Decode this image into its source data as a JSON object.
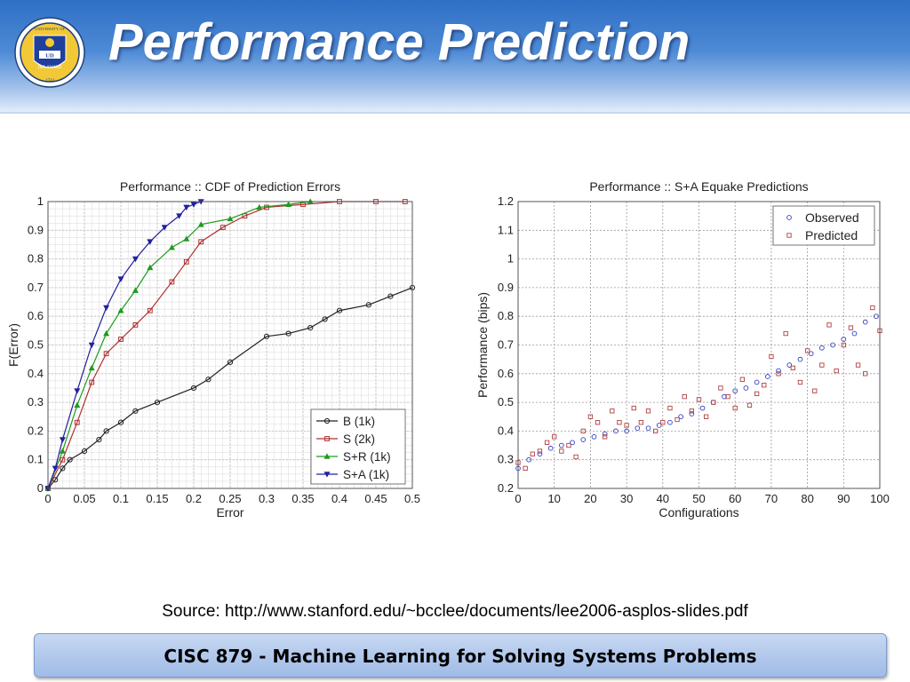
{
  "slide": {
    "title": "Performance Prediction",
    "source": "Source: http://www.stanford.edu/~bcclee/documents/lee2006-asplos-slides.pdf",
    "footer": "CISC 879 - Machine Learning for Solving Systems Problems",
    "logo": {
      "text_top": "UNIVERSITY OF",
      "text_bottom": "DELAWARE",
      "year": "1743",
      "initials": "UD"
    }
  },
  "colors": {
    "B": "#222222",
    "S": "#b03030",
    "SR": "#1f9a1f",
    "SA": "#2020a0",
    "observed": "#3040c0",
    "predicted": "#b04040"
  },
  "chart_data": [
    {
      "type": "line",
      "title": "Performance :: CDF of Prediction Errors",
      "xlabel": "Error",
      "ylabel": "F(Error)",
      "xlim": [
        0,
        0.5
      ],
      "ylim": [
        0,
        1
      ],
      "xticks": [
        "0",
        "0.05",
        "0.1",
        "0.15",
        "0.2",
        "0.25",
        "0.3",
        "0.35",
        "0.4",
        "0.45",
        "0.5"
      ],
      "yticks": [
        "0",
        "0.1",
        "0.2",
        "0.3",
        "0.4",
        "0.5",
        "0.6",
        "0.7",
        "0.8",
        "0.9",
        "1"
      ],
      "grid": true,
      "legend_position": "bottom-right",
      "series": [
        {
          "name": "B (1k)",
          "x": [
            0,
            0.01,
            0.02,
            0.03,
            0.05,
            0.07,
            0.08,
            0.1,
            0.12,
            0.15,
            0.2,
            0.22,
            0.25,
            0.3,
            0.33,
            0.36,
            0.38,
            0.4,
            0.44,
            0.47,
            0.5
          ],
          "y": [
            0,
            0.03,
            0.07,
            0.1,
            0.13,
            0.17,
            0.2,
            0.23,
            0.27,
            0.3,
            0.35,
            0.38,
            0.44,
            0.53,
            0.54,
            0.56,
            0.59,
            0.62,
            0.64,
            0.67,
            0.7
          ]
        },
        {
          "name": "S (2k)",
          "x": [
            0,
            0.02,
            0.04,
            0.06,
            0.08,
            0.1,
            0.12,
            0.14,
            0.17,
            0.19,
            0.21,
            0.24,
            0.27,
            0.3,
            0.35,
            0.4,
            0.45,
            0.49
          ],
          "y": [
            0,
            0.1,
            0.23,
            0.37,
            0.47,
            0.52,
            0.57,
            0.62,
            0.72,
            0.79,
            0.86,
            0.91,
            0.95,
            0.98,
            0.99,
            1.0,
            1.0,
            1.0
          ]
        },
        {
          "name": "S+R (1k)",
          "x": [
            0,
            0.02,
            0.04,
            0.06,
            0.08,
            0.1,
            0.12,
            0.14,
            0.17,
            0.19,
            0.21,
            0.25,
            0.29,
            0.33,
            0.36
          ],
          "y": [
            0,
            0.13,
            0.29,
            0.42,
            0.54,
            0.62,
            0.69,
            0.77,
            0.84,
            0.87,
            0.92,
            0.94,
            0.98,
            0.99,
            1.0
          ]
        },
        {
          "name": "S+A (1k)",
          "x": [
            0,
            0.01,
            0.02,
            0.04,
            0.06,
            0.08,
            0.1,
            0.12,
            0.14,
            0.16,
            0.18,
            0.19,
            0.2,
            0.21
          ],
          "y": [
            0,
            0.07,
            0.17,
            0.34,
            0.5,
            0.63,
            0.73,
            0.8,
            0.86,
            0.91,
            0.95,
            0.98,
            0.99,
            1.0
          ]
        }
      ]
    },
    {
      "type": "scatter",
      "title": "Performance :: S+A Equake Predictions",
      "xlabel": "Configurations",
      "ylabel": "Performance (bips)",
      "xlim": [
        0,
        100
      ],
      "ylim": [
        0.2,
        1.2
      ],
      "xticks": [
        "0",
        "10",
        "20",
        "30",
        "40",
        "50",
        "60",
        "70",
        "80",
        "90",
        "100"
      ],
      "yticks": [
        "0.2",
        "0.3",
        "0.4",
        "0.5",
        "0.6",
        "0.7",
        "0.8",
        "0.9",
        "1",
        "1.1",
        "1.2"
      ],
      "grid": true,
      "legend_position": "top-right",
      "series": [
        {
          "name": "Observed",
          "x": [
            0,
            3,
            6,
            9,
            12,
            15,
            18,
            21,
            24,
            27,
            30,
            33,
            36,
            39,
            42,
            45,
            48,
            51,
            54,
            57,
            60,
            63,
            66,
            69,
            72,
            75,
            78,
            81,
            84,
            87,
            90,
            93,
            96,
            99
          ],
          "y": [
            0.27,
            0.3,
            0.32,
            0.34,
            0.35,
            0.36,
            0.37,
            0.38,
            0.39,
            0.4,
            0.4,
            0.41,
            0.41,
            0.42,
            0.43,
            0.45,
            0.46,
            0.48,
            0.5,
            0.52,
            0.54,
            0.55,
            0.57,
            0.59,
            0.61,
            0.63,
            0.65,
            0.67,
            0.69,
            0.7,
            0.72,
            0.74,
            0.78,
            0.8
          ]
        },
        {
          "name": "Predicted",
          "x": [
            0,
            2,
            4,
            6,
            8,
            10,
            12,
            14,
            16,
            18,
            20,
            22,
            24,
            26,
            28,
            30,
            32,
            34,
            36,
            38,
            40,
            42,
            44,
            46,
            48,
            50,
            52,
            54,
            56,
            58,
            60,
            62,
            64,
            66,
            68,
            70,
            72,
            74,
            76,
            78,
            80,
            82,
            84,
            86,
            88,
            90,
            92,
            94,
            96,
            98,
            100
          ],
          "y": [
            0.29,
            0.27,
            0.32,
            0.33,
            0.36,
            0.38,
            0.33,
            0.35,
            0.31,
            0.4,
            0.45,
            0.43,
            0.38,
            0.47,
            0.43,
            0.42,
            0.48,
            0.43,
            0.47,
            0.4,
            0.43,
            0.48,
            0.44,
            0.52,
            0.47,
            0.51,
            0.45,
            0.5,
            0.55,
            0.52,
            0.48,
            0.58,
            0.49,
            0.53,
            0.56,
            0.66,
            0.6,
            0.74,
            0.62,
            0.57,
            0.68,
            0.54,
            0.63,
            0.77,
            0.61,
            0.7,
            0.76,
            0.63,
            0.6,
            0.83,
            0.75
          ]
        }
      ]
    }
  ]
}
